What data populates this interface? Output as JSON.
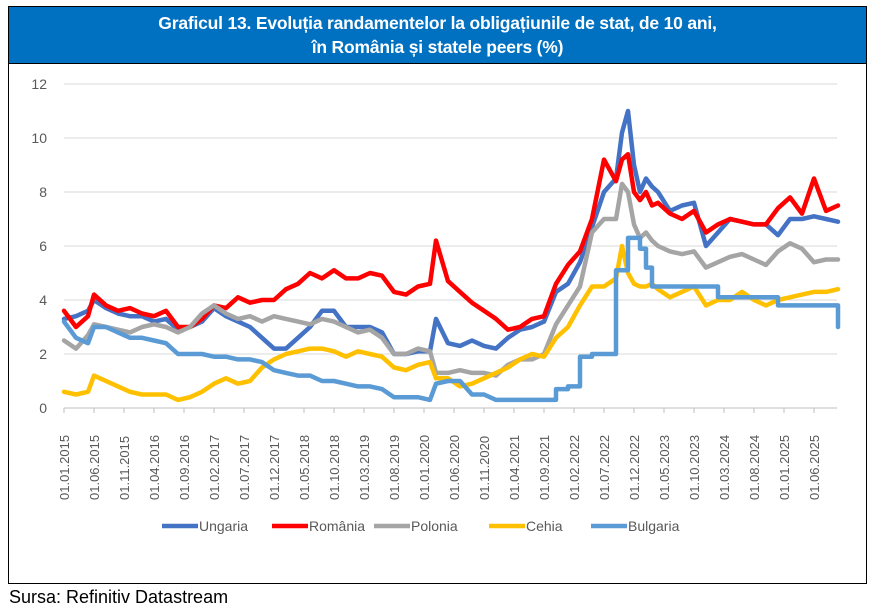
{
  "title": {
    "line1": "Graficul 13. Evoluția randamentelor la obligațiunile de stat, de 10 ani,",
    "line2": "în România și statele peers (%)"
  },
  "source": "Sursa: Refinitiv Datastream",
  "chart_data": {
    "type": "line",
    "title": "Graficul 13. Evoluția randamentelor la obligațiunile de stat, de 10 ani, în România și statele peers (%)",
    "xlabel": "",
    "ylabel": "%",
    "ylim": [
      0,
      12
    ],
    "yticks": [
      0,
      2,
      4,
      6,
      8,
      10,
      12
    ],
    "grid": true,
    "legend": "bottom",
    "x_start": "2015-01",
    "x_end": "2025-10",
    "xtick_labels": [
      "01.01.2015",
      "01.06.2015",
      "01.11.2015",
      "01.04.2016",
      "01.09.2016",
      "01.02.2017",
      "01.07.2017",
      "01.12.2017",
      "01.05.2018",
      "01.10.2018",
      "01.03.2019",
      "01.08.2019",
      "01.01.2020",
      "01.06.2020",
      "01.11.2020",
      "01.04.2021",
      "01.09.2021",
      "01.02.2022",
      "01.07.2022",
      "01.12.2022",
      "01.05.2023",
      "01.10.2023",
      "01.03.2024",
      "01.08.2024",
      "01.01.2025",
      "01.06.2025"
    ],
    "x": [
      "2015-01",
      "2015-03",
      "2015-05",
      "2015-06",
      "2015-08",
      "2015-10",
      "2015-12",
      "2016-02",
      "2016-04",
      "2016-06",
      "2016-08",
      "2016-10",
      "2016-12",
      "2017-02",
      "2017-04",
      "2017-06",
      "2017-08",
      "2017-10",
      "2017-12",
      "2018-02",
      "2018-04",
      "2018-06",
      "2018-08",
      "2018-10",
      "2018-12",
      "2019-02",
      "2019-04",
      "2019-06",
      "2019-08",
      "2019-10",
      "2019-12",
      "2020-02",
      "2020-03",
      "2020-05",
      "2020-07",
      "2020-09",
      "2020-11",
      "2021-01",
      "2021-03",
      "2021-05",
      "2021-07",
      "2021-09",
      "2021-11",
      "2022-01",
      "2022-03",
      "2022-05",
      "2022-07",
      "2022-09",
      "2022-10",
      "2022-11",
      "2022-12",
      "2023-01",
      "2023-02",
      "2023-03",
      "2023-04",
      "2023-06",
      "2023-08",
      "2023-10",
      "2023-12",
      "2024-02",
      "2024-04",
      "2024-06",
      "2024-08",
      "2024-10",
      "2024-12",
      "2025-02",
      "2025-04",
      "2025-06",
      "2025-08",
      "2025-10"
    ],
    "series": [
      {
        "name": "Ungaria",
        "color": "#4472c4",
        "values": [
          3.3,
          3.4,
          3.6,
          4.0,
          3.7,
          3.5,
          3.4,
          3.4,
          3.2,
          3.3,
          2.9,
          3.0,
          3.2,
          3.7,
          3.4,
          3.2,
          3.0,
          2.6,
          2.2,
          2.2,
          2.6,
          3.0,
          3.6,
          3.6,
          3.0,
          3.0,
          3.0,
          2.8,
          2.0,
          2.0,
          2.1,
          2.1,
          3.3,
          2.4,
          2.3,
          2.5,
          2.3,
          2.2,
          2.6,
          2.9,
          3.0,
          3.2,
          4.3,
          4.6,
          5.4,
          6.7,
          8.0,
          8.5,
          10.2,
          11.0,
          9.0,
          8.0,
          8.5,
          8.2,
          8.0,
          7.3,
          7.5,
          7.6,
          6.0,
          6.5,
          7.0,
          6.9,
          6.8,
          6.8,
          6.4,
          7.0,
          7.0,
          7.1,
          7.0,
          6.9
        ]
      },
      {
        "name": "România",
        "color": "#ff0000",
        "values": [
          3.6,
          3.0,
          3.4,
          4.2,
          3.8,
          3.6,
          3.7,
          3.5,
          3.4,
          3.6,
          3.0,
          3.0,
          3.3,
          3.8,
          3.7,
          4.1,
          3.9,
          4.0,
          4.0,
          4.4,
          4.6,
          5.0,
          4.8,
          5.1,
          4.8,
          4.8,
          5.0,
          4.9,
          4.3,
          4.2,
          4.5,
          4.6,
          6.2,
          4.7,
          4.3,
          3.9,
          3.6,
          3.3,
          2.9,
          3.0,
          3.3,
          3.4,
          4.6,
          5.3,
          5.8,
          7.0,
          9.2,
          8.4,
          9.2,
          9.4,
          8.0,
          7.7,
          8.0,
          7.5,
          7.6,
          7.2,
          7.0,
          7.3,
          6.5,
          6.8,
          7.0,
          6.9,
          6.8,
          6.8,
          7.4,
          7.8,
          7.2,
          8.5,
          7.3,
          7.5
        ]
      },
      {
        "name": "Polonia",
        "color": "#a5a5a5",
        "values": [
          2.5,
          2.2,
          2.7,
          3.1,
          3.0,
          2.9,
          2.8,
          3.0,
          3.1,
          3.0,
          2.8,
          3.0,
          3.5,
          3.8,
          3.5,
          3.3,
          3.4,
          3.2,
          3.4,
          3.3,
          3.2,
          3.1,
          3.3,
          3.2,
          3.0,
          2.8,
          2.9,
          2.6,
          2.0,
          2.0,
          2.2,
          2.1,
          1.3,
          1.3,
          1.4,
          1.3,
          1.3,
          1.2,
          1.6,
          1.8,
          1.8,
          2.0,
          3.1,
          3.8,
          4.5,
          6.5,
          7.0,
          7.0,
          8.3,
          8.0,
          6.8,
          6.3,
          6.5,
          6.2,
          6.0,
          5.8,
          5.7,
          5.8,
          5.2,
          5.4,
          5.6,
          5.7,
          5.5,
          5.3,
          5.8,
          6.1,
          5.9,
          5.4,
          5.5,
          5.5
        ]
      },
      {
        "name": "Cehia",
        "color": "#ffc000",
        "values": [
          0.6,
          0.5,
          0.6,
          1.2,
          1.0,
          0.8,
          0.6,
          0.5,
          0.5,
          0.5,
          0.3,
          0.4,
          0.6,
          0.9,
          1.1,
          0.9,
          1.0,
          1.5,
          1.8,
          2.0,
          2.1,
          2.2,
          2.2,
          2.1,
          1.9,
          2.1,
          2.0,
          1.9,
          1.5,
          1.4,
          1.6,
          1.7,
          1.1,
          1.1,
          0.8,
          0.9,
          1.1,
          1.3,
          1.5,
          1.8,
          2.0,
          1.9,
          2.6,
          3.0,
          3.8,
          4.5,
          4.5,
          4.8,
          6.0,
          5.0,
          4.6,
          4.5,
          4.5,
          4.6,
          4.4,
          4.1,
          4.3,
          4.5,
          3.8,
          4.0,
          4.0,
          4.3,
          4.0,
          3.8,
          4.0,
          4.1,
          4.2,
          4.3,
          4.3,
          4.4
        ]
      },
      {
        "name": "Bulgaria",
        "color": "#5b9bd5",
        "values": [
          3.2,
          2.6,
          2.4,
          3.0,
          3.0,
          2.8,
          2.6,
          2.6,
          2.5,
          2.4,
          2.0,
          2.0,
          2.0,
          1.9,
          1.9,
          1.8,
          1.8,
          1.7,
          1.4,
          1.3,
          1.2,
          1.2,
          1.0,
          1.0,
          0.9,
          0.8,
          0.8,
          0.7,
          0.4,
          0.4,
          0.4,
          0.3,
          0.9,
          1.0,
          1.0,
          0.5,
          0.5,
          0.3,
          0.3,
          0.3,
          0.3,
          0.3,
          0.7,
          0.8,
          1.9,
          2.0,
          2.0,
          5.1,
          5.1,
          6.3,
          6.3,
          5.9,
          5.2,
          4.5,
          4.5,
          4.5,
          4.5,
          4.5,
          4.5,
          4.1,
          4.1,
          4.1,
          4.1,
          4.1,
          3.8,
          3.8,
          3.8,
          3.8,
          3.8,
          3.0
        ]
      }
    ]
  },
  "legend": [
    {
      "label": "Ungaria",
      "color": "#4472c4"
    },
    {
      "label": "România",
      "color": "#ff0000"
    },
    {
      "label": "Polonia",
      "color": "#a5a5a5"
    },
    {
      "label": "Cehia",
      "color": "#ffc000"
    },
    {
      "label": "Bulgaria",
      "color": "#5b9bd5"
    }
  ]
}
